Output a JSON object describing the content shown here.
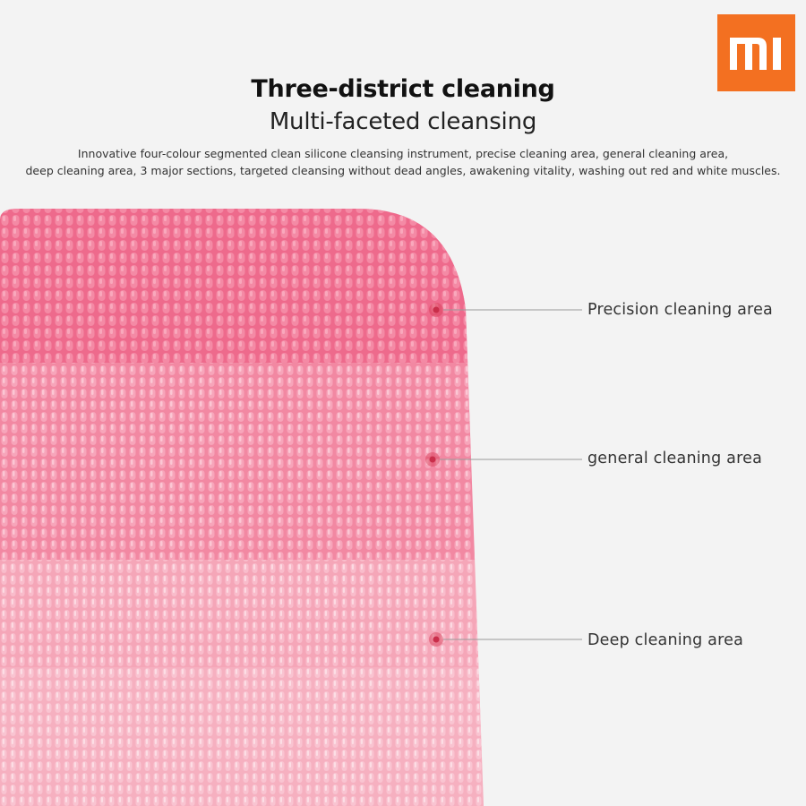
{
  "brand": {
    "logo_text": "MI",
    "logo_color": "#f37021"
  },
  "header": {
    "title": "Three-district cleaning",
    "subtitle": "Multi-faceted cleansing",
    "description": [
      "Innovative four-colour segmented clean silicone cleansing instrument, precise cleaning area, general cleaning area,",
      "deep cleaning area, 3 major sections, targeted cleansing without dead angles, awakening vitality, washing out red and white muscles."
    ]
  },
  "callouts": [
    {
      "label": "Precision cleaning area"
    },
    {
      "label": "general cleaning area"
    },
    {
      "label": "Deep cleaning area"
    }
  ],
  "colors": {
    "zone_precision": "#ee6a8c",
    "zone_general": "#f288a2",
    "zone_deep": "#f5a6b8",
    "background": "#f3f3f3",
    "marker": "#d63a55"
  }
}
